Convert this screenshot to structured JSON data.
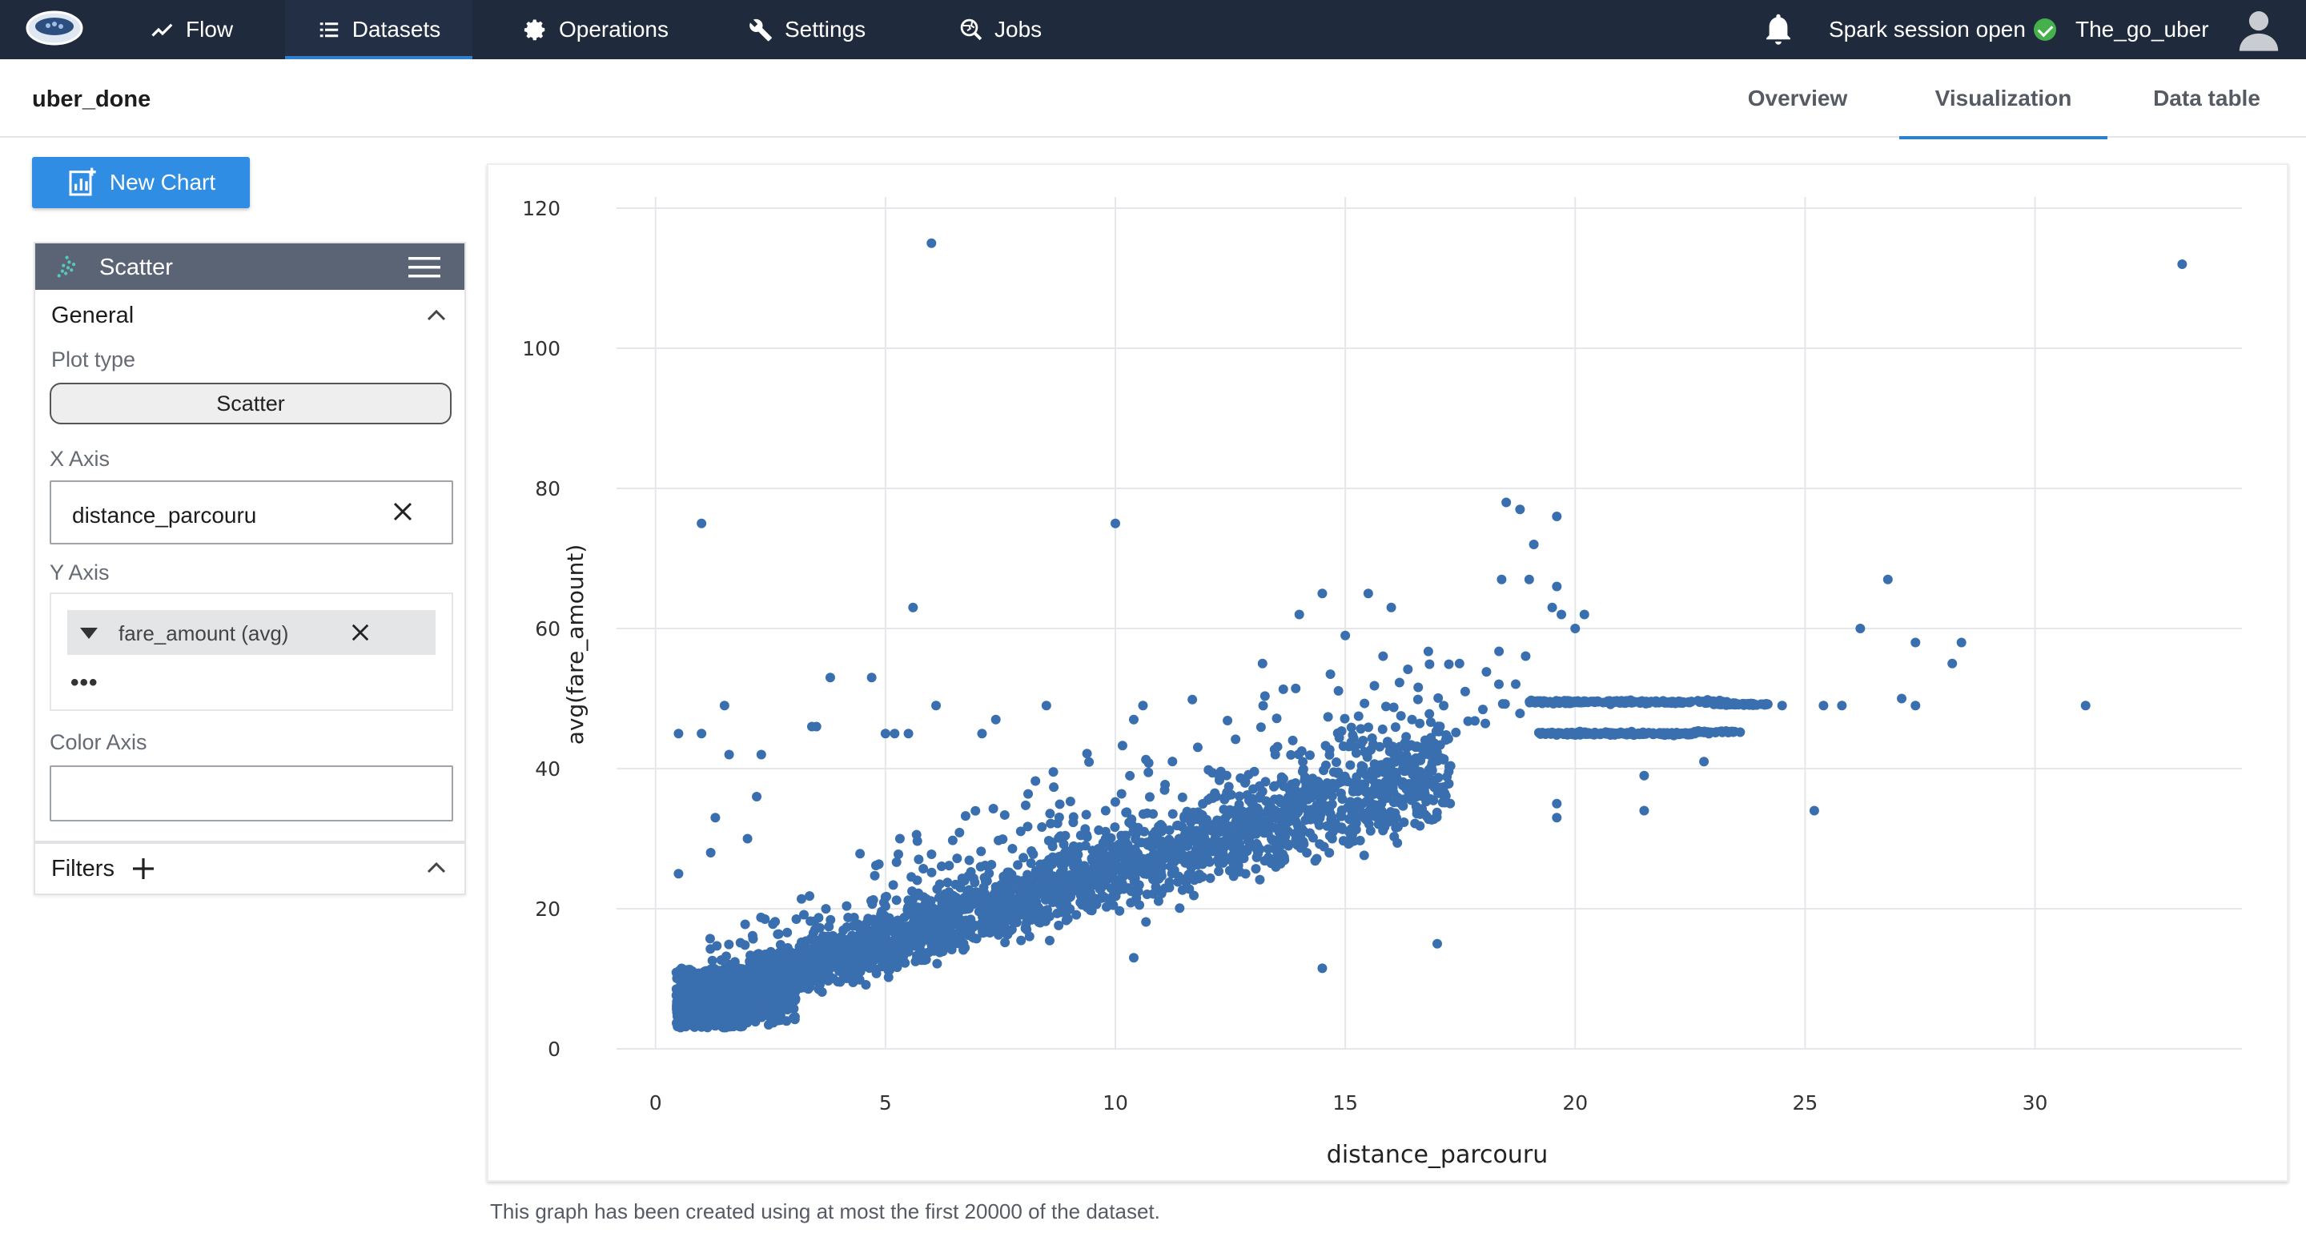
{
  "nav": {
    "items": [
      {
        "label": "Flow",
        "icon": "trend-line-icon"
      },
      {
        "label": "Datasets",
        "icon": "list-icon",
        "active": true
      },
      {
        "label": "Operations",
        "icon": "gear-icon"
      },
      {
        "label": "Settings",
        "icon": "wrench-icon"
      },
      {
        "label": "Jobs",
        "icon": "globe-search-icon"
      }
    ],
    "spark_status": "Spark session open",
    "status_color": "#45b04c",
    "user_name": "The_go_uber"
  },
  "dataset": {
    "name": "uber_done",
    "tabs": [
      {
        "label": "Overview"
      },
      {
        "label": "Visualization",
        "active": true
      },
      {
        "label": "Data table"
      }
    ]
  },
  "sidebar": {
    "new_chart_label": "New Chart",
    "chart_panel_title": "Scatter",
    "general_title": "General",
    "plot_type_label": "Plot type",
    "plot_type_value": "Scatter",
    "x_axis_label": "X Axis",
    "x_axis_value": "distance_parcouru",
    "y_axis_label": "Y Axis",
    "y_axis_value": "fare_amount (avg)",
    "y_more": "•••",
    "color_axis_label": "Color Axis",
    "color_axis_value": "",
    "filters_label": "Filters"
  },
  "chart_data": {
    "type": "scatter",
    "xlabel": "distance_parcouru",
    "ylabel": "avg(fare_amount)",
    "xlim": [
      -0.5,
      34.5
    ],
    "ylim": [
      0,
      120
    ],
    "x_ticks": [
      0,
      5,
      10,
      15,
      20,
      25,
      30
    ],
    "y_ticks": [
      0,
      20,
      40,
      60,
      80,
      100,
      120
    ],
    "grid": true,
    "color": "#3a6faf",
    "series": [
      {
        "points": [
          [
            6.0,
            115
          ],
          [
            33.2,
            112
          ],
          [
            1.0,
            75
          ],
          [
            10.0,
            75
          ],
          [
            5.6,
            63
          ],
          [
            0.5,
            45
          ],
          [
            1.0,
            45
          ],
          [
            1.5,
            49
          ],
          [
            1.6,
            42
          ],
          [
            2.3,
            42
          ],
          [
            3.8,
            53
          ],
          [
            4.7,
            53
          ],
          [
            3.4,
            46
          ],
          [
            3.5,
            46
          ],
          [
            5.0,
            45
          ],
          [
            5.2,
            45
          ],
          [
            5.5,
            45
          ],
          [
            6.1,
            49
          ],
          [
            7.1,
            45
          ],
          [
            7.4,
            47
          ],
          [
            8.5,
            49
          ],
          [
            10.6,
            49
          ],
          [
            10.4,
            47
          ],
          [
            14.0,
            62
          ],
          [
            14.5,
            65
          ],
          [
            15.5,
            65
          ],
          [
            16.0,
            63
          ],
          [
            15.0,
            59
          ],
          [
            13.2,
            55
          ],
          [
            18.5,
            78
          ],
          [
            18.8,
            77
          ],
          [
            19.6,
            76
          ],
          [
            19.1,
            72
          ],
          [
            18.4,
            67
          ],
          [
            19.0,
            67
          ],
          [
            19.6,
            66
          ],
          [
            19.7,
            62
          ],
          [
            20.2,
            62
          ],
          [
            20.0,
            60
          ],
          [
            19.5,
            63
          ],
          [
            26.2,
            60
          ],
          [
            26.8,
            67
          ],
          [
            27.4,
            58
          ],
          [
            28.4,
            58
          ],
          [
            28.2,
            55
          ],
          [
            24.5,
            49
          ],
          [
            25.4,
            49
          ],
          [
            25.8,
            49
          ],
          [
            27.1,
            50
          ],
          [
            27.4,
            49
          ],
          [
            31.1,
            49
          ],
          [
            25.2,
            34
          ],
          [
            21.5,
            39
          ],
          [
            21.5,
            34
          ],
          [
            22.8,
            41
          ],
          [
            19.6,
            35
          ],
          [
            19.6,
            33
          ],
          [
            17.0,
            15
          ],
          [
            14.5,
            11.5
          ],
          [
            10.4,
            13
          ],
          [
            2.2,
            36
          ],
          [
            2.0,
            30
          ],
          [
            1.2,
            28
          ],
          [
            0.5,
            25
          ],
          [
            1.3,
            33
          ]
        ]
      }
    ]
  },
  "footer_note": "This graph has been created using at most the first 20000 of the dataset."
}
